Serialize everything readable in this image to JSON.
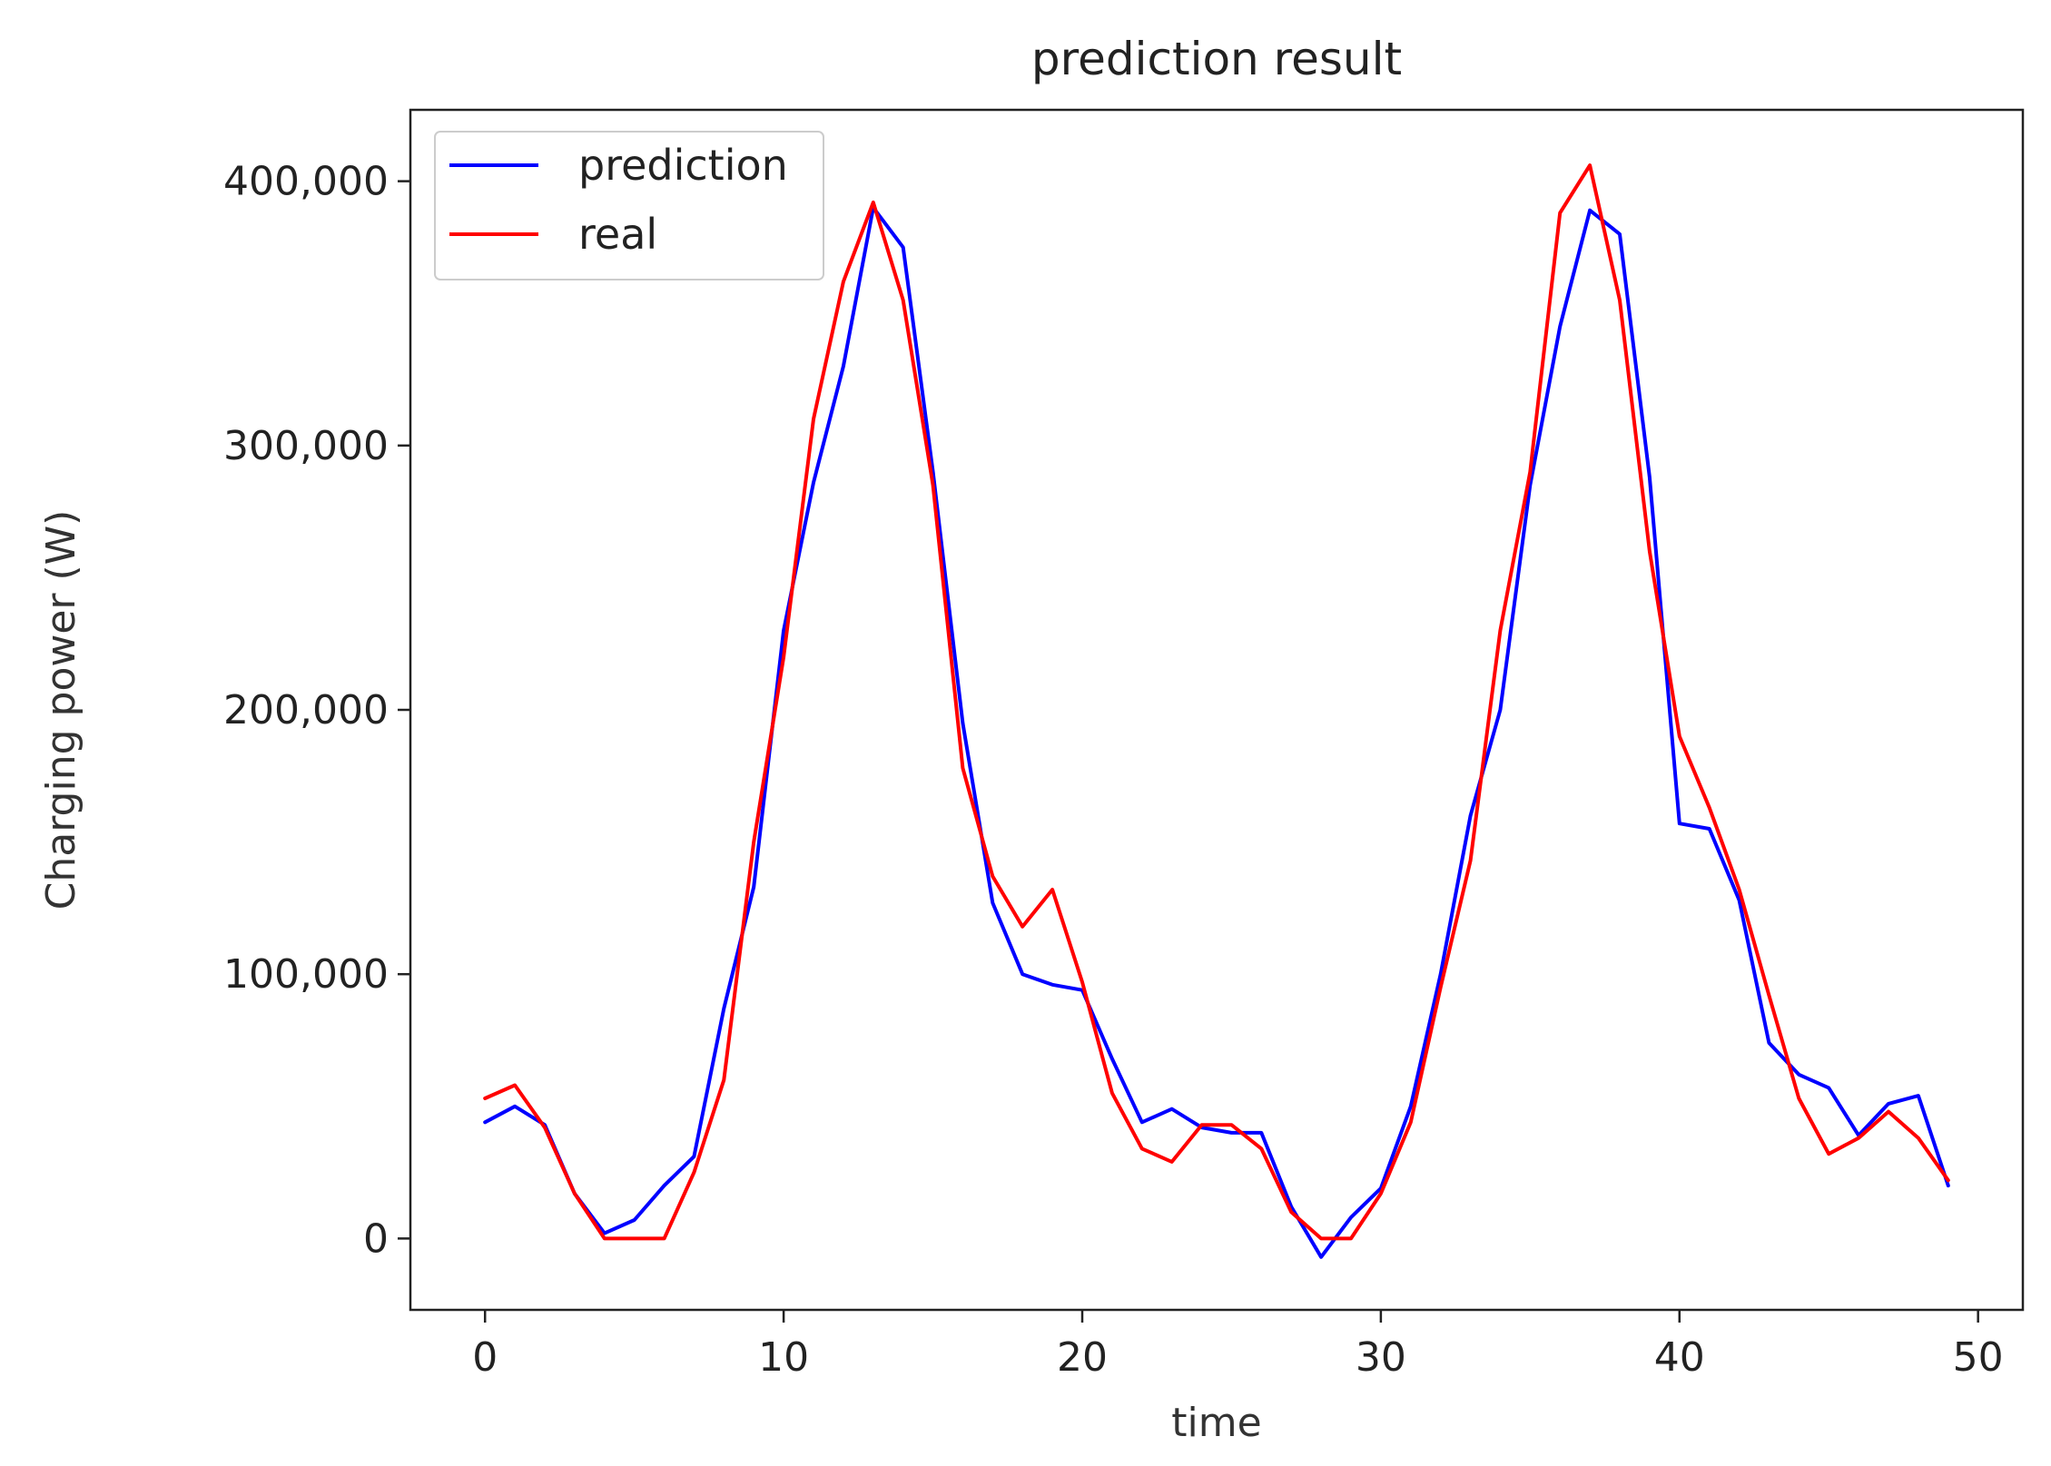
{
  "chart_data": {
    "type": "line",
    "title": "prediction result",
    "xlabel": "time",
    "ylabel": "Charging power (W)",
    "xlim": [
      -2.5,
      51.5
    ],
    "ylim": [
      -27000,
      427000
    ],
    "xticks": [
      0,
      10,
      20,
      30,
      40,
      50
    ],
    "xtick_labels": [
      "0",
      "10",
      "20",
      "30",
      "40",
      "50"
    ],
    "yticks": [
      0,
      100000,
      200000,
      300000,
      400000
    ],
    "ytick_labels": [
      "0",
      "100,000",
      "200,000",
      "300,000",
      "400,000"
    ],
    "legend_position": "top-left",
    "grid": false,
    "x": [
      0,
      1,
      2,
      3,
      4,
      5,
      6,
      7,
      8,
      9,
      10,
      11,
      12,
      13,
      14,
      15,
      16,
      17,
      18,
      19,
      20,
      21,
      22,
      23,
      24,
      25,
      26,
      27,
      28,
      29,
      30,
      31,
      32,
      33,
      34,
      35,
      36,
      37,
      38,
      39,
      40,
      41,
      42,
      43,
      44,
      45,
      46,
      47,
      48,
      49
    ],
    "series": [
      {
        "name": "prediction",
        "color": "#0000ff",
        "values": [
          44000,
          50000,
          43000,
          17000,
          2000,
          7000,
          20000,
          31000,
          87000,
          133000,
          230000,
          286000,
          330000,
          390000,
          375000,
          290000,
          195000,
          127000,
          100000,
          96000,
          94000,
          68000,
          44000,
          49000,
          42000,
          40000,
          40000,
          12000,
          -7000,
          8000,
          19000,
          50000,
          100000,
          160000,
          200000,
          285000,
          345000,
          389000,
          380000,
          288000,
          157000,
          155000,
          128000,
          74000,
          62000,
          57000,
          39000,
          51000,
          54000,
          20000
        ]
      },
      {
        "name": "real",
        "color": "#ff0000",
        "values": [
          53000,
          58000,
          42000,
          17000,
          0,
          0,
          0,
          25000,
          60000,
          150000,
          220000,
          310000,
          362000,
          392000,
          355000,
          285000,
          178000,
          137000,
          118000,
          132000,
          97000,
          55000,
          34000,
          29000,
          43000,
          43000,
          34000,
          10000,
          0,
          0,
          17000,
          44000,
          95000,
          143000,
          230000,
          290000,
          388000,
          406000,
          355000,
          260000,
          190000,
          163000,
          132000,
          92000,
          53000,
          32000,
          38000,
          48000,
          38000,
          22000
        ]
      }
    ]
  }
}
